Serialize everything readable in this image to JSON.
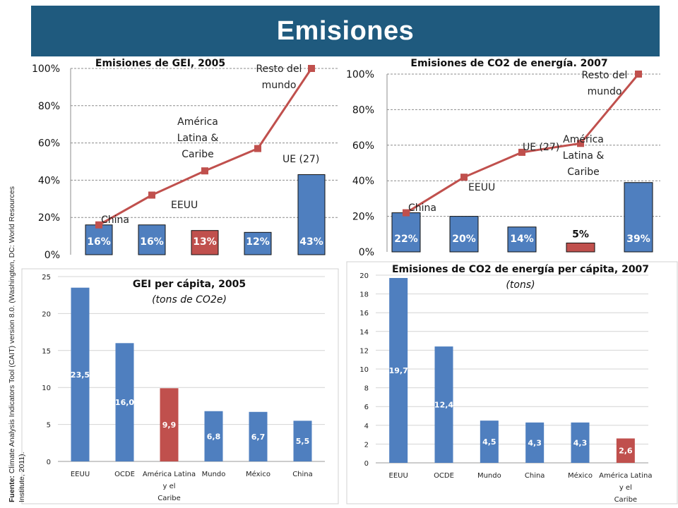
{
  "page": {
    "title": "Emisiones"
  },
  "source": {
    "label": "Fuente:",
    "text": " Climate Analysis Indicators Tool (CAIT) version 8.0. (Washington, DC: World Resources Institute, 2011)."
  },
  "colors": {
    "banner": "#1f5a7e",
    "bar_blue": "#4f7fbf",
    "bar_red": "#c0504d",
    "line_red": "#c0504d"
  },
  "chart_data": [
    {
      "id": "gei2005",
      "type": "bar+line",
      "title": "Emisiones de GEI, 2005",
      "ylim": [
        0,
        100
      ],
      "yticks": [
        "0%",
        "20%",
        "40%",
        "60%",
        "80%",
        "100%"
      ],
      "bars": [
        {
          "value": 16,
          "label": "16%",
          "color": "blue"
        },
        {
          "value": 16,
          "label": "16%",
          "color": "blue"
        },
        {
          "value": 13,
          "label": "13%",
          "color": "red"
        },
        {
          "value": 12,
          "label": "12%",
          "color": "blue"
        },
        {
          "value": 43,
          "label": "43%",
          "color": "blue"
        }
      ],
      "cumulative": [
        16,
        32,
        45,
        57,
        100
      ],
      "annotations": [
        "China",
        "EEUU",
        "América Latina & Caribe",
        "UE (27)",
        "Resto del mundo"
      ]
    },
    {
      "id": "co2energia2007",
      "type": "bar+line",
      "title": "Emisiones de CO2 de energía. 2007",
      "ylim": [
        0,
        100
      ],
      "yticks": [
        "0%",
        "20%",
        "40%",
        "60%",
        "80%",
        "100%"
      ],
      "bars": [
        {
          "value": 22,
          "label": "22%",
          "color": "blue"
        },
        {
          "value": 20,
          "label": "20%",
          "color": "blue"
        },
        {
          "value": 14,
          "label": "14%",
          "color": "blue"
        },
        {
          "value": 5,
          "label": "5%",
          "color": "red"
        },
        {
          "value": 39,
          "label": "39%",
          "color": "blue"
        }
      ],
      "cumulative": [
        22,
        42,
        56,
        61,
        100
      ],
      "annotations": [
        "China",
        "EEUU",
        "UE (27)",
        "América Latina & Caribe",
        "Resto del mundo"
      ]
    },
    {
      "id": "gei_percapita_2005",
      "type": "bar",
      "title": "GEI per cápita, 2005",
      "subtitle": "(tons de CO2e)",
      "ylim": [
        0,
        25
      ],
      "yticks": [
        "0",
        "5",
        "10",
        "15",
        "20",
        "25"
      ],
      "categories": [
        "EEUU",
        "OCDE",
        "América Latina y el Caribe",
        "Mundo",
        "México",
        "China"
      ],
      "values": [
        23.5,
        16.0,
        9.9,
        6.8,
        6.7,
        5.5
      ],
      "labels": [
        "23,5",
        "16,0",
        "9,9",
        "6,8",
        "6,7",
        "5,5"
      ],
      "bar_colors": [
        "blue",
        "blue",
        "red",
        "blue",
        "blue",
        "blue"
      ]
    },
    {
      "id": "co2_percapita_2007",
      "type": "bar",
      "title": "Emisiones de CO2 de energía per cápita, 2007",
      "subtitle": "(tons)",
      "ylim": [
        0,
        20
      ],
      "yticks": [
        "0",
        "2",
        "4",
        "6",
        "8",
        "10",
        "12",
        "14",
        "16",
        "18",
        "20"
      ],
      "categories": [
        "EEUU",
        "OCDE",
        "Mundo",
        "China",
        "México",
        "América Latina y el Caribe"
      ],
      "values": [
        19.7,
        12.4,
        4.5,
        4.3,
        4.3,
        2.6
      ],
      "labels": [
        "19,7",
        "12,4",
        "4,5",
        "4,3",
        "4,3",
        "2,6"
      ],
      "bar_colors": [
        "blue",
        "blue",
        "blue",
        "blue",
        "blue",
        "red"
      ]
    }
  ]
}
